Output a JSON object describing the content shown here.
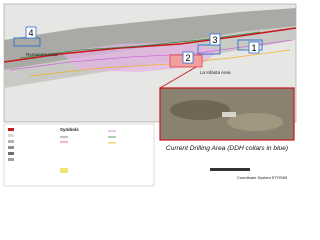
{
  "map": {
    "markers": [
      "1",
      "2",
      "3",
      "4"
    ],
    "areas": [
      "Romanera Area",
      "La Infanta Area"
    ]
  },
  "inset": {
    "caption": "Current Drilling Area (DDH collars in blue)"
  },
  "legend": {
    "title": "Symbols"
  },
  "footer": {
    "coordinate_system": "Coordinate System ETRS89"
  }
}
